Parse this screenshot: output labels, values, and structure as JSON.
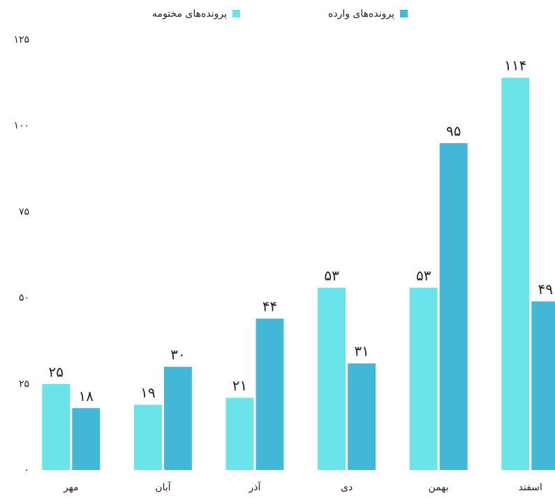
{
  "chart_data": {
    "type": "bar",
    "categories": [
      "مهر",
      "آبان",
      "آذر",
      "دی",
      "بهمن",
      "اسفند"
    ],
    "series": [
      {
        "name": "پرونده‌های مختومه",
        "color": "#6ae4e8",
        "values": [
          25,
          19,
          21,
          53,
          53,
          114
        ],
        "value_labels": [
          "۲۵",
          "۱۹",
          "۲۱",
          "۵۳",
          "۵۳",
          "۱۱۴"
        ]
      },
      {
        "name": "پرونده‌های وارده",
        "color": "#42b8d6",
        "values": [
          18,
          30,
          44,
          31,
          95,
          49
        ],
        "value_labels": [
          "۱۸",
          "۳۰",
          "۴۴",
          "۳۱",
          "۹۵",
          "۴۹"
        ]
      }
    ],
    "ylim": [
      0,
      125
    ],
    "yticks": [
      {
        "value": 0,
        "label": "۰"
      },
      {
        "value": 25,
        "label": "۲۵"
      },
      {
        "value": 50,
        "label": "۵۰"
      },
      {
        "value": 75,
        "label": "۷۵"
      },
      {
        "value": 100,
        "label": "۱۰۰"
      },
      {
        "value": 125,
        "label": "۱۲۵"
      }
    ],
    "grid": false
  }
}
